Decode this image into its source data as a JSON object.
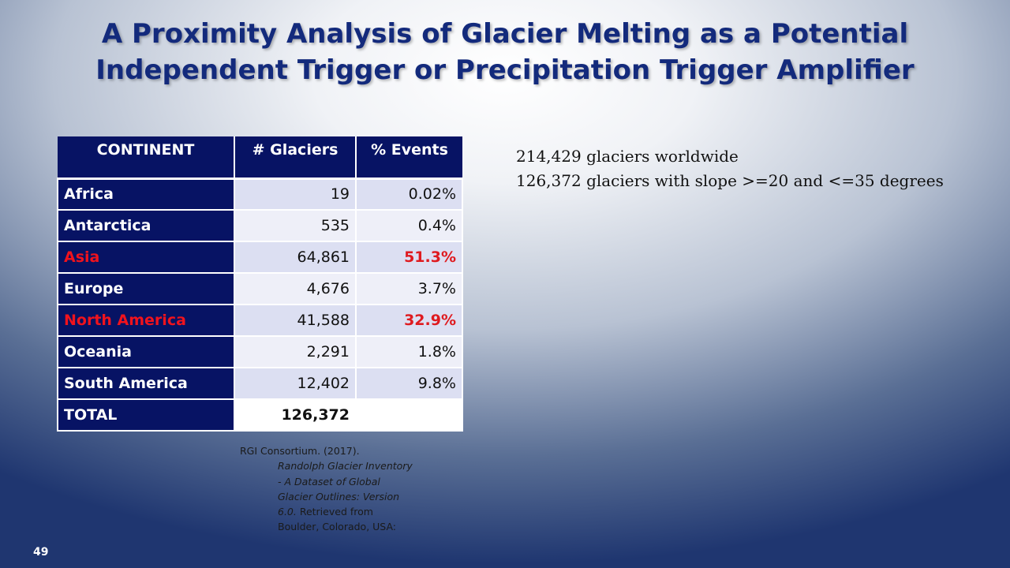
{
  "title": {
    "line1": "A Proximity Analysis of Glacier Melting as a Potential",
    "line2": "Independent Trigger or Precipitation Trigger Amplifier"
  },
  "table": {
    "headers": [
      "CONTINENT",
      "# Glaciers",
      "% Events"
    ],
    "rows": [
      {
        "continent": "Africa",
        "glaciers": "19",
        "events": "0.02%"
      },
      {
        "continent": "Antarctica",
        "glaciers": "535",
        "events": "0.4%"
      },
      {
        "continent": "Asia",
        "glaciers": "64,861",
        "events": "51.3%"
      },
      {
        "continent": "Europe",
        "glaciers": "4,676",
        "events": "3.7%"
      },
      {
        "continent": "North America",
        "glaciers": "41,588",
        "events": "32.9%"
      },
      {
        "continent": "Oceania",
        "glaciers": "2,291",
        "events": "1.8%"
      },
      {
        "continent": "South America",
        "glaciers": "12,402",
        "events": "9.8%"
      }
    ],
    "total": {
      "label": "TOTAL",
      "glaciers": "126,372",
      "events": ""
    }
  },
  "stats": {
    "line1": "214,429 glaciers worldwide",
    "line2": "126,372 glaciers with slope >=20 and <=35 degrees"
  },
  "citation": {
    "author": "RGI Consortium.  (2017).",
    "title": "Randolph Glacier Inventory - A Dataset of Global Glacier Outlines: Version 6.0.",
    "rest": " Retrieved from Boulder, Colorado, USA:"
  },
  "colors": {
    "header_bg": "#071364",
    "highlight": "#df1a1f",
    "title": "#132a7c"
  },
  "slide_number": "49"
}
